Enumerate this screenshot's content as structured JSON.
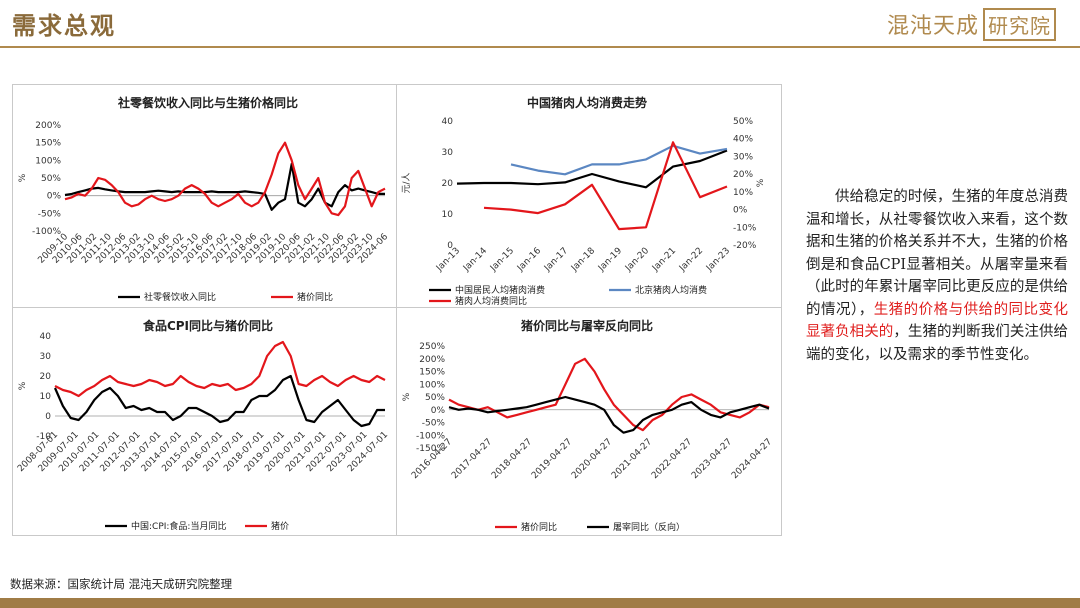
{
  "header": {
    "title": "需求总观",
    "brand_text": "混沌天成",
    "brand_box_text": "研究院"
  },
  "text_block": {
    "part1": "供给稳定的时候，生猪的年度总消费温和增长，从社零餐饮收入来看，这个数据和生猪的价格关系并不大，生猪的价格倒是和食品CPI显著相关。从屠宰量来看（此时的年累计屠宰同比更反应的是供给的情况），",
    "highlight": "生猪的价格与供给的同比变化显著负相关的",
    "part2": "，生猪的判断我们关注供给端的变化，以及需求的季节性变化。"
  },
  "source": "数据来源：国家统计局 混沌天成研究院整理",
  "colors": {
    "accent": "#b08a4e",
    "series_black": "#000000",
    "series_red": "#e3161b",
    "series_blue": "#5b87c2"
  },
  "chart_data": [
    {
      "type": "line",
      "title": "社零餐饮收入同比与生猪价格同比",
      "ylabel": "%",
      "ylim": [
        -100,
        200
      ],
      "yticks": [
        "200%",
        "150%",
        "100%",
        "50%",
        "0%",
        "-50%",
        "-100%"
      ],
      "xticks": [
        "2009-10",
        "2010-06",
        "2011-02",
        "2011-10",
        "2012-06",
        "2013-02",
        "2013-10",
        "2014-06",
        "2015-02",
        "2015-10",
        "2016-06",
        "2017-02",
        "2017-10",
        "2018-06",
        "2019-02",
        "2019-10",
        "2020-06",
        "2021-02",
        "2021-10",
        "2022-06",
        "2023-02",
        "2023-10",
        "2024-06"
      ],
      "series": [
        {
          "name": "社零餐饮收入同比",
          "color": "#000000",
          "values": [
            2,
            5,
            10,
            15,
            20,
            22,
            18,
            15,
            12,
            10,
            10,
            10,
            10,
            12,
            14,
            12,
            10,
            12,
            10,
            10,
            10,
            10,
            12,
            10,
            10,
            10,
            10,
            12,
            10,
            8,
            5,
            -40,
            -20,
            -10,
            90,
            -20,
            -30,
            -10,
            20,
            -20,
            -30,
            10,
            30,
            15,
            20,
            15,
            10,
            5,
            5
          ]
        },
        {
          "name": "猪价同比",
          "color": "#e3161b",
          "values": [
            -10,
            -5,
            5,
            0,
            20,
            50,
            45,
            30,
            10,
            -20,
            -30,
            -25,
            -10,
            0,
            -10,
            -15,
            -10,
            0,
            20,
            30,
            20,
            5,
            -20,
            -30,
            -20,
            -10,
            5,
            -20,
            -30,
            -20,
            10,
            60,
            120,
            150,
            100,
            30,
            -10,
            20,
            50,
            -20,
            -50,
            -55,
            -30,
            50,
            70,
            20,
            -30,
            10,
            20
          ]
        }
      ]
    },
    {
      "type": "line",
      "title": "中国猪肉人均消费走势",
      "ylabel": "元/人",
      "ylim": [
        0,
        40
      ],
      "y2lim": [
        -20,
        50
      ],
      "yticks": [
        "40",
        "30",
        "20",
        "10",
        "0"
      ],
      "y2ticks": [
        "50%",
        "40%",
        "30%",
        "20%",
        "10%",
        "0%",
        "-10%",
        "-20%"
      ],
      "categories": [
        "Jan-13",
        "Jan-14",
        "Jan-15",
        "Jan-16",
        "Jan-17",
        "Jan-18",
        "Jan-19",
        "Jan-20",
        "Jan-21",
        "Jan-22",
        "Jan-23"
      ],
      "series": [
        {
          "name": "中国居民人均猪肉消费",
          "axis": "left",
          "color": "#000000",
          "values": [
            19.8,
            20,
            20,
            19.6,
            20.2,
            22.9,
            20.5,
            18.6,
            25.3,
            27.1,
            30.5
          ]
        },
        {
          "name": "北京猪肉人均消费",
          "axis": "left",
          "color": "#5b87c2",
          "values": [
            null,
            null,
            26,
            24,
            22.8,
            26,
            26,
            27.6,
            32,
            29.5,
            31
          ]
        },
        {
          "name": "猪肉人均消费同比",
          "axis": "right",
          "color": "#e3161b",
          "values": [
            null,
            1,
            0,
            -2,
            3,
            14,
            -11,
            -10,
            38,
            7,
            13
          ]
        }
      ]
    },
    {
      "type": "line",
      "title": "食品CPI同比与猪价同比",
      "ylabel": "%",
      "ylim": [
        -10,
        40
      ],
      "yticks": [
        "40",
        "30",
        "20",
        "10",
        "0",
        "-10"
      ],
      "xticks": [
        "2008-07-01",
        "2009-07-01",
        "2010-07-01",
        "2011-07-01",
        "2012-07-01",
        "2013-07-01",
        "2014-07-01",
        "2015-07-01",
        "2016-07-01",
        "2017-07-01",
        "2018-07-01",
        "2019-07-01",
        "2020-07-01",
        "2021-07-01",
        "2022-07-01",
        "2023-07-01",
        "2024-07-01"
      ],
      "series": [
        {
          "name": "中国:CPI:食品:当月同比",
          "color": "#000000",
          "values": [
            14,
            5,
            -1,
            -2,
            2,
            8,
            12,
            14,
            10,
            4,
            5,
            3,
            4,
            2,
            2,
            -2,
            0,
            4,
            4,
            2,
            0,
            -3,
            -2,
            2,
            2,
            8,
            10,
            10,
            13,
            18,
            20,
            8,
            -2,
            -3,
            2,
            5,
            8,
            3,
            -2,
            -5,
            -4,
            3,
            3
          ]
        },
        {
          "name": "猪价",
          "color": "#e3161b",
          "values": [
            15,
            13,
            12,
            10,
            13,
            15,
            18,
            20,
            17,
            16,
            15,
            16,
            18,
            17,
            15,
            16,
            20,
            17,
            15,
            14,
            16,
            15,
            16,
            13,
            14,
            16,
            20,
            30,
            35,
            37,
            30,
            16,
            15,
            18,
            20,
            17,
            15,
            18,
            20,
            18,
            17,
            20,
            18
          ]
        }
      ]
    },
    {
      "type": "line",
      "title": "猪价同比与屠宰反向同比",
      "ylabel": "%",
      "ylim": [
        -150,
        250
      ],
      "yticks": [
        "250%",
        "200%",
        "150%",
        "100%",
        "50%",
        "0%",
        "-50%",
        "-100%",
        "-150%"
      ],
      "xticks": [
        "2016-04-27",
        "2017-04-27",
        "2018-04-27",
        "2019-04-27",
        "2020-04-27",
        "2021-04-27",
        "2022-04-27",
        "2023-04-27",
        "2024-04-27"
      ],
      "series": [
        {
          "name": "猪价同比",
          "color": "#e3161b",
          "values": [
            40,
            20,
            10,
            0,
            10,
            -10,
            -30,
            -20,
            -10,
            0,
            10,
            20,
            100,
            180,
            200,
            150,
            80,
            20,
            -20,
            -60,
            -80,
            -40,
            -20,
            20,
            50,
            60,
            40,
            20,
            -10,
            -20,
            -30,
            -10,
            20,
            10
          ]
        },
        {
          "name": "屠宰同比（反向）",
          "color": "#000000",
          "values": [
            10,
            0,
            5,
            0,
            -10,
            -5,
            0,
            5,
            10,
            20,
            30,
            40,
            50,
            40,
            30,
            20,
            0,
            -60,
            -90,
            -80,
            -40,
            -20,
            -10,
            0,
            20,
            30,
            0,
            -20,
            -30,
            -10,
            0,
            10,
            20,
            5
          ]
        }
      ]
    }
  ]
}
